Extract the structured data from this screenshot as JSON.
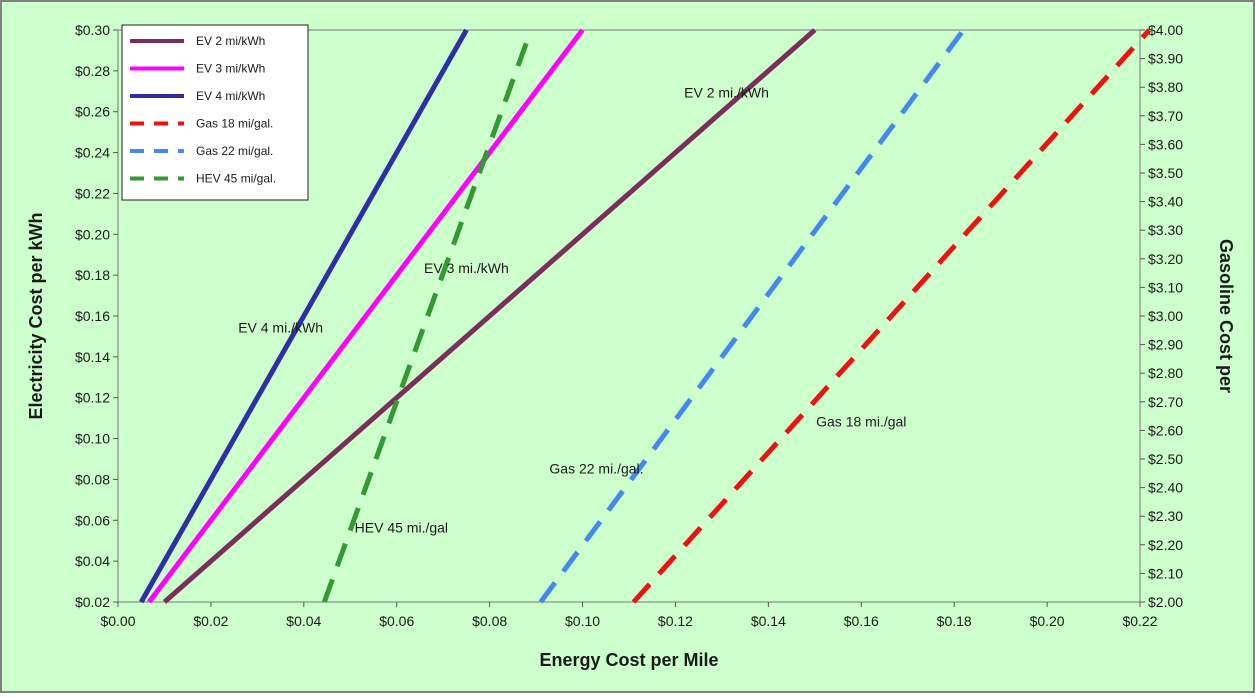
{
  "chart_data": {
    "type": "line",
    "title": "",
    "xlabel": "Energy Cost per Mile",
    "ylabel": "Electricity Cost per kWh",
    "y2label": "Gasoline Cost per",
    "xlim": [
      0,
      0.22
    ],
    "ylim": [
      0.02,
      0.3
    ],
    "y2lim": [
      2.0,
      4.0
    ],
    "x_ticks": [
      "$0.00",
      "$0.02",
      "$0.04",
      "$0.06",
      "$0.08",
      "$0.10",
      "$0.12",
      "$0.14",
      "$0.16",
      "$0.18",
      "$0.20",
      "$0.22"
    ],
    "y_ticks": [
      "$0.02",
      "$0.04",
      "$0.06",
      "$0.08",
      "$0.10",
      "$0.12",
      "$0.14",
      "$0.16",
      "$0.18",
      "$0.20",
      "$0.22",
      "$0.24",
      "$0.26",
      "$0.28",
      "$0.30"
    ],
    "y2_ticks": [
      "$2.00",
      "$2.10",
      "$2.20",
      "$2.30",
      "$2.40",
      "$2.50",
      "$2.60",
      "$2.70",
      "$2.80",
      "$2.90",
      "$3.00",
      "$3.10",
      "$3.20",
      "$3.30",
      "$3.40",
      "$3.50",
      "$3.60",
      "$3.70",
      "$3.80",
      "$3.90",
      "$4.00"
    ],
    "grid": false,
    "background": "#ccffcc",
    "legend_position": "top-left",
    "series": [
      {
        "name": "EV 2 mi/kWh",
        "axis": "left",
        "color": "#7b2d5b",
        "dash": "solid",
        "x": [
          0.01,
          0.15
        ],
        "y": [
          0.02,
          0.3
        ]
      },
      {
        "name": "EV 3 mi/kWh",
        "axis": "left",
        "color": "#ff00ff",
        "dash": "solid",
        "x": [
          0.0067,
          0.1
        ],
        "y": [
          0.02,
          0.3
        ]
      },
      {
        "name": "EV 4 mi/kWh",
        "axis": "left",
        "color": "#2e2ea8",
        "dash": "solid",
        "x": [
          0.005,
          0.075
        ],
        "y": [
          0.02,
          0.3
        ]
      },
      {
        "name": "Gas 18 mi/gal.",
        "axis": "right",
        "color": "#ee1111",
        "dash": "dashed",
        "x": [
          0.111,
          0.222
        ],
        "y": [
          2.0,
          4.0
        ]
      },
      {
        "name": "Gas 22 mi/gal.",
        "axis": "right",
        "color": "#4488ee",
        "dash": "dashed",
        "x": [
          0.091,
          0.182
        ],
        "y": [
          2.0,
          4.0
        ]
      },
      {
        "name": "HEV 45 mi/gal.",
        "axis": "right",
        "color": "#339933",
        "dash": "dashed",
        "x": [
          0.0444,
          0.0889
        ],
        "y": [
          2.0,
          4.0
        ]
      }
    ],
    "annotations": [
      {
        "text": "EV 2 mi./kWh",
        "x": 0.131,
        "y": 0.267
      },
      {
        "text": "EV 3 mi./kWh",
        "x": 0.075,
        "y": 0.181
      },
      {
        "text": "EV 4 mi./kWh",
        "x": 0.035,
        "y": 0.152
      },
      {
        "text": "Gas 18 mi./gal",
        "x": 0.16,
        "y": 0.106
      },
      {
        "text": "Gas 22 mi./gal.",
        "x": 0.103,
        "y": 0.083
      },
      {
        "text": "HEV 45 mi./gal",
        "x": 0.061,
        "y": 0.054
      }
    ]
  }
}
